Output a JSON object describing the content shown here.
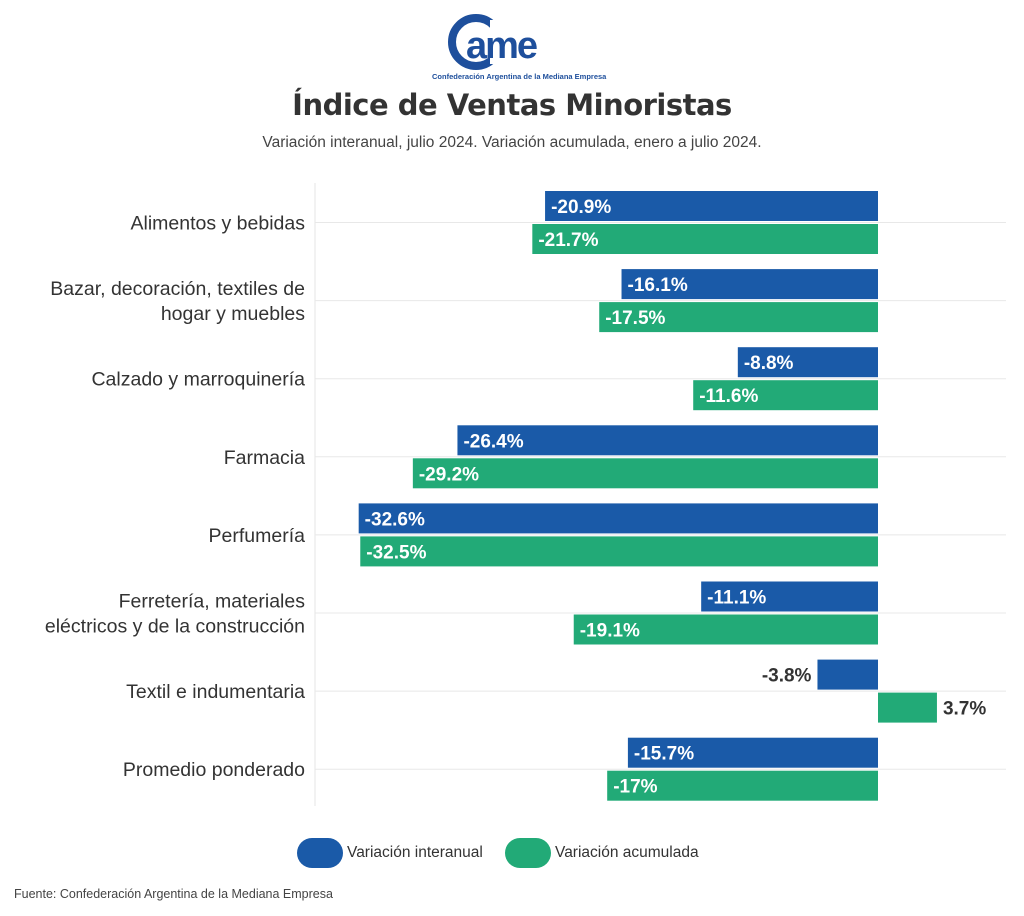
{
  "logo": {
    "text": "came",
    "subtext": "Confederación Argentina de la Mediana Empresa",
    "color": "#1e4f9c"
  },
  "header": {
    "title": "Índice de Ventas Minoristas",
    "subtitle": "Variación interanual, julio 2024. Variación acumulada, enero a julio 2024."
  },
  "chart_data": {
    "type": "bar",
    "orientation": "horizontal",
    "categories": [
      "Alimentos y bebidas",
      "Bazar, decoración, textiles de hogar y muebles",
      "Calzado y marroquinería",
      "Farmacia",
      "Perfumería",
      "Ferretería, materiales eléctricos y de la construcción",
      "Textil e indumentaria",
      "Promedio ponderado"
    ],
    "category_lines": [
      [
        "Alimentos y bebidas"
      ],
      [
        "Bazar, decoración, textiles de",
        "hogar y muebles"
      ],
      [
        "Calzado y marroquinería"
      ],
      [
        "Farmacia"
      ],
      [
        "Perfumería"
      ],
      [
        "Ferretería, materiales",
        "eléctricos y de la construcción"
      ],
      [
        "Textil e indumentaria"
      ],
      [
        "Promedio ponderado"
      ]
    ],
    "series": [
      {
        "name": "Variación interanual",
        "color": "#1a5aa8",
        "values": [
          -20.9,
          -16.1,
          -8.8,
          -26.4,
          -32.6,
          -11.1,
          -3.8,
          -15.7
        ],
        "labels": [
          "-20.9%",
          "-16.1%",
          "-8.8%",
          "-26.4%",
          "-32.6%",
          "-11.1%",
          "-3.8%",
          "-15.7%"
        ]
      },
      {
        "name": "Variación acumulada",
        "color": "#22aa77",
        "values": [
          -21.7,
          -17.5,
          -11.6,
          -29.2,
          -32.5,
          -19.1,
          3.7,
          -17
        ],
        "labels": [
          "-21.7%",
          "-17.5%",
          "-11.6%",
          "-29.2%",
          "-32.5%",
          "-19.1%",
          "3.7%",
          "-17%"
        ]
      }
    ],
    "xlim": [
      -35,
      7
    ],
    "grid": true,
    "legend_position": "bottom"
  },
  "legend": {
    "items": [
      {
        "label": "Variación interanual",
        "color": "#1a5aa8"
      },
      {
        "label": "Variación acumulada",
        "color": "#22aa77"
      }
    ]
  },
  "footer": {
    "source": "Fuente: Confederación Argentina de la Mediana Empresa"
  }
}
